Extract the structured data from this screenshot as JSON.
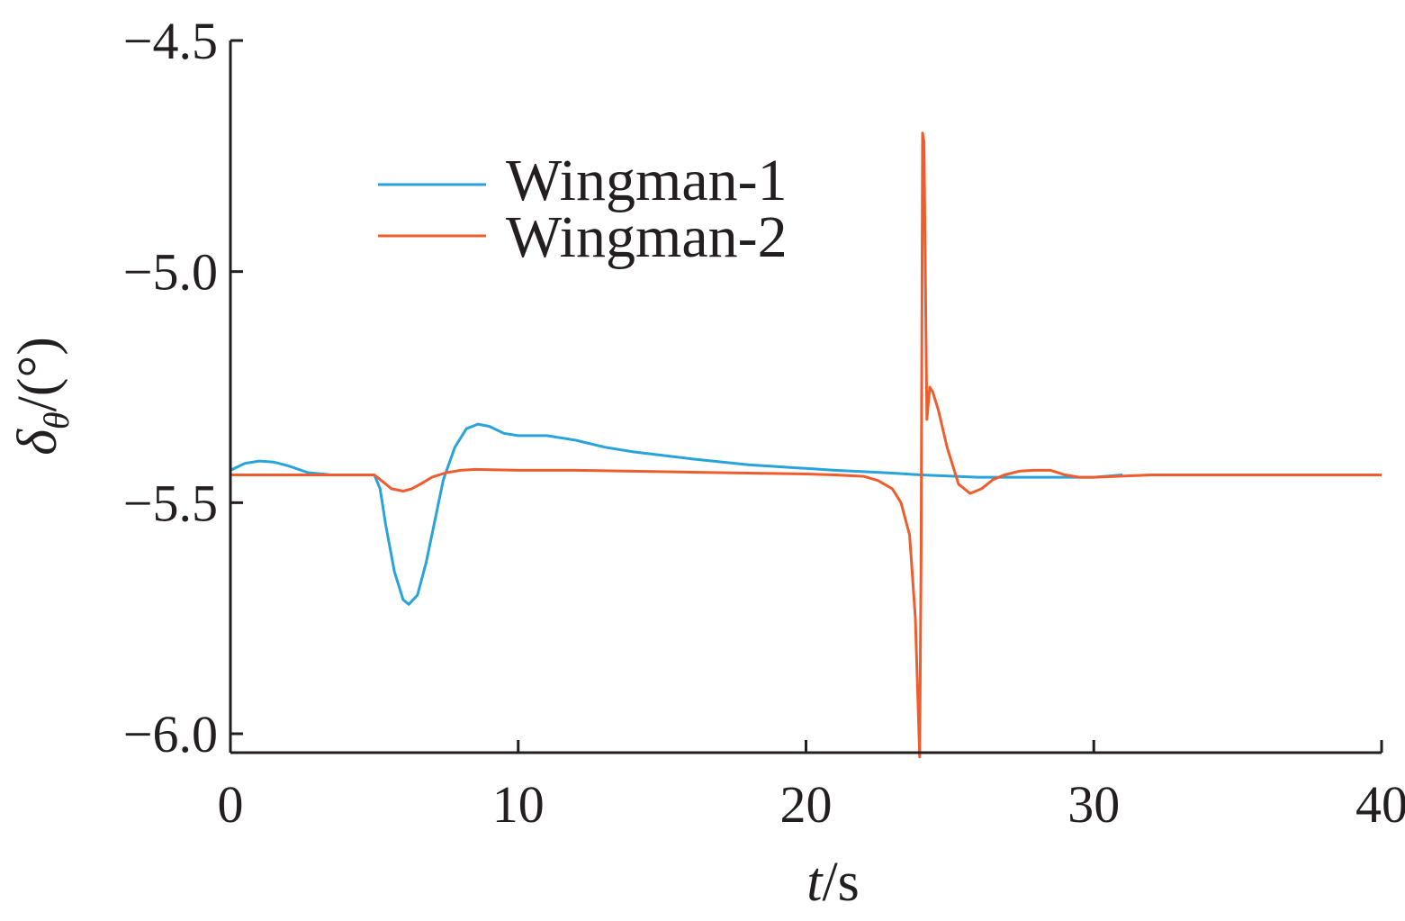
{
  "chart_data": {
    "type": "line",
    "title": "",
    "xlabel": {
      "italic": "t",
      "rest": "/s"
    },
    "ylabel": {
      "symbol": "δ",
      "subscript": "θ",
      "rest": "/(°)"
    },
    "xlim": [
      0,
      40
    ],
    "ylim": [
      -6.05,
      -4.5
    ],
    "xticks": [
      0,
      10,
      20,
      30,
      40
    ],
    "xtick_labels": [
      "0",
      "10",
      "20",
      "30",
      "40"
    ],
    "yticks": [
      -4.5,
      -5.0,
      -5.5,
      -6.0
    ],
    "ytick_labels": [
      "−4.5",
      "−5.0",
      "−5.5",
      "−6.0"
    ],
    "grid": false,
    "legend_position": "top-left",
    "series": [
      {
        "name": "Wingman-1",
        "color": "#29a3dc",
        "x": [
          0,
          0.5,
          1,
          1.5,
          2,
          2.7,
          3.5,
          5,
          5.2,
          5.4,
          5.7,
          6.0,
          6.2,
          6.5,
          6.8,
          7.1,
          7.4,
          7.8,
          8.2,
          8.6,
          9.0,
          9.5,
          10,
          11,
          12,
          13,
          14,
          16,
          18,
          20,
          21,
          22,
          23,
          24,
          26,
          28,
          30,
          31
        ],
        "y": [
          -5.43,
          -5.415,
          -5.41,
          -5.412,
          -5.42,
          -5.435,
          -5.44,
          -5.44,
          -5.47,
          -5.55,
          -5.65,
          -5.71,
          -5.72,
          -5.7,
          -5.63,
          -5.54,
          -5.45,
          -5.38,
          -5.34,
          -5.33,
          -5.335,
          -5.35,
          -5.355,
          -5.355,
          -5.365,
          -5.38,
          -5.39,
          -5.405,
          -5.418,
          -5.426,
          -5.43,
          -5.433,
          -5.436,
          -5.44,
          -5.445,
          -5.445,
          -5.445,
          -5.44
        ]
      },
      {
        "name": "Wingman-2",
        "color": "#ef5c2e",
        "x": [
          0,
          1,
          2,
          3,
          4,
          5,
          5.3,
          5.6,
          6.0,
          6.3,
          6.6,
          7.0,
          7.5,
          8.0,
          8.5,
          10,
          12,
          14,
          16,
          18,
          20,
          21,
          22,
          22.5,
          23,
          23.3,
          23.6,
          23.8,
          23.95,
          24.0,
          24.05,
          24.1,
          24.2,
          24.3,
          24.4,
          24.6,
          24.9,
          25.3,
          25.7,
          26.1,
          26.5,
          26.9,
          27.4,
          27.9,
          28.5,
          29.0,
          29.5,
          30,
          32,
          35,
          40
        ],
        "y": [
          -5.44,
          -5.44,
          -5.44,
          -5.44,
          -5.44,
          -5.44,
          -5.455,
          -5.47,
          -5.475,
          -5.47,
          -5.46,
          -5.445,
          -5.435,
          -5.43,
          -5.428,
          -5.43,
          -5.43,
          -5.432,
          -5.434,
          -5.436,
          -5.438,
          -5.44,
          -5.443,
          -5.452,
          -5.47,
          -5.5,
          -5.57,
          -5.75,
          -6.05,
          -5.6,
          -4.7,
          -4.72,
          -5.32,
          -5.25,
          -5.26,
          -5.3,
          -5.38,
          -5.46,
          -5.48,
          -5.47,
          -5.45,
          -5.44,
          -5.432,
          -5.43,
          -5.43,
          -5.44,
          -5.445,
          -5.445,
          -5.44,
          -5.44,
          -5.44
        ]
      }
    ]
  }
}
